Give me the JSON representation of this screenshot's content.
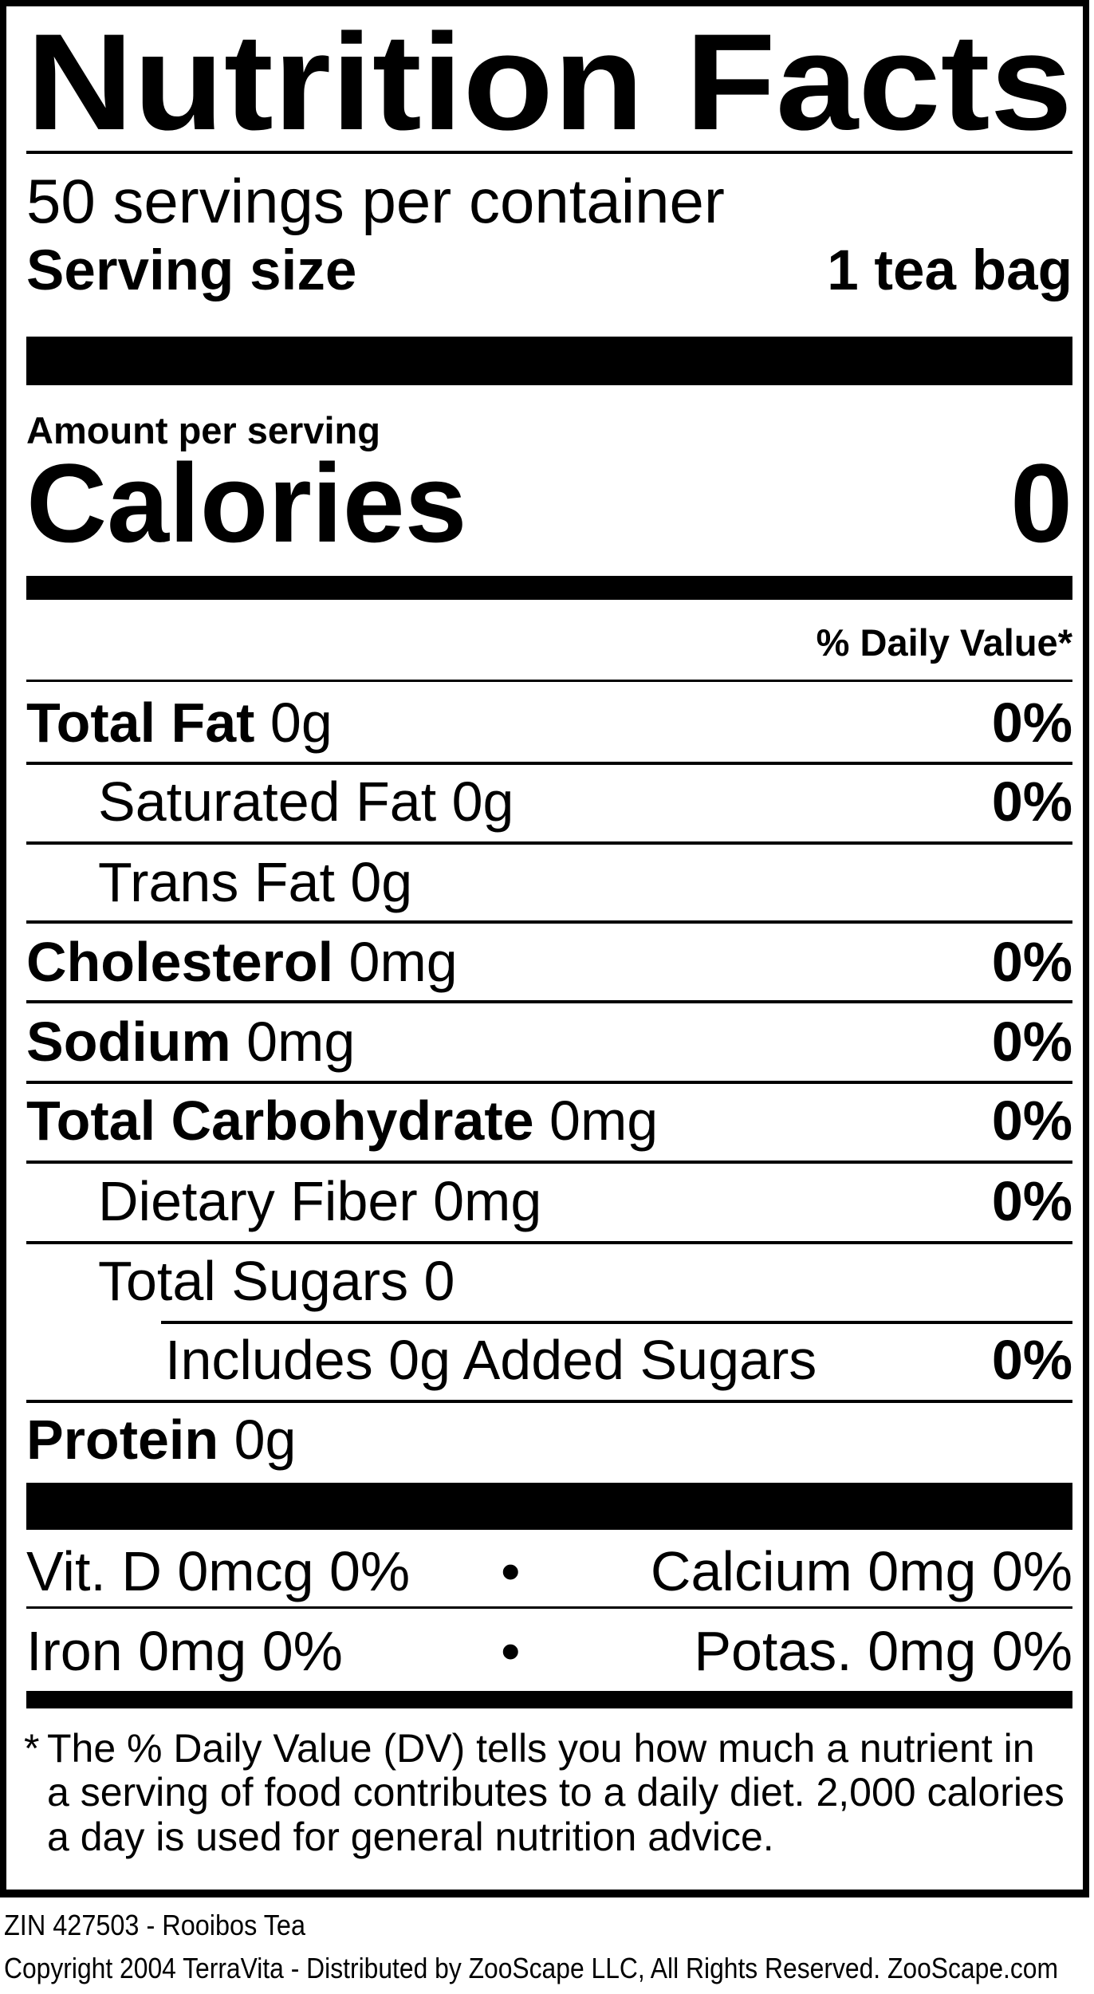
{
  "label": {
    "title": "Nutrition Facts",
    "servings_per_container": "50 servings per container",
    "serving_size_label": "Serving size",
    "serving_size_value": "1 tea bag",
    "amount_per_serving": "Amount per serving",
    "calories_label": "Calories",
    "calories_value": "0",
    "daily_value_header": "% Daily Value*",
    "nutrients": [
      {
        "name": "Total Fat",
        "amount": "0g",
        "dv": "0%"
      },
      {
        "name": "Saturated Fat 0g",
        "amount": "",
        "dv": "0%"
      },
      {
        "name": "Trans Fat 0g",
        "amount": "",
        "dv": ""
      },
      {
        "name": "Cholesterol",
        "amount": "0mg",
        "dv": "0%"
      },
      {
        "name": "Sodium",
        "amount": "0mg",
        "dv": "0%"
      },
      {
        "name": "Total Carbohydrate",
        "amount": "0mg",
        "dv": "0%"
      },
      {
        "name": "Dietary Fiber 0mg",
        "amount": "",
        "dv": "0%"
      },
      {
        "name": "Total Sugars 0",
        "amount": "",
        "dv": ""
      },
      {
        "name": "Includes 0g Added Sugars",
        "amount": "",
        "dv": "0%"
      },
      {
        "name": "Protein",
        "amount": "0g",
        "dv": ""
      }
    ],
    "micronutrients": [
      {
        "left": "Vit. D 0mcg 0%",
        "separator": "•",
        "right": "Calcium 0mg 0%"
      },
      {
        "left": "Iron 0mg 0%",
        "separator": "•",
        "right": "Potas. 0mg 0%"
      }
    ],
    "footnote": {
      "asterisk": "*",
      "lines": [
        "The % Daily Value (DV) tells you how much a nutrient in",
        "a serving of food contributes to a daily diet. 2,000 calories",
        "a day is used for general nutrition advice."
      ]
    }
  },
  "footer": {
    "product_id": "ZIN 427503 - Rooibos Tea",
    "copyright": "Copyright 2004 TerraVita - Distributed by ZooScape LLC, All Rights Reserved. ZooScape.com"
  }
}
